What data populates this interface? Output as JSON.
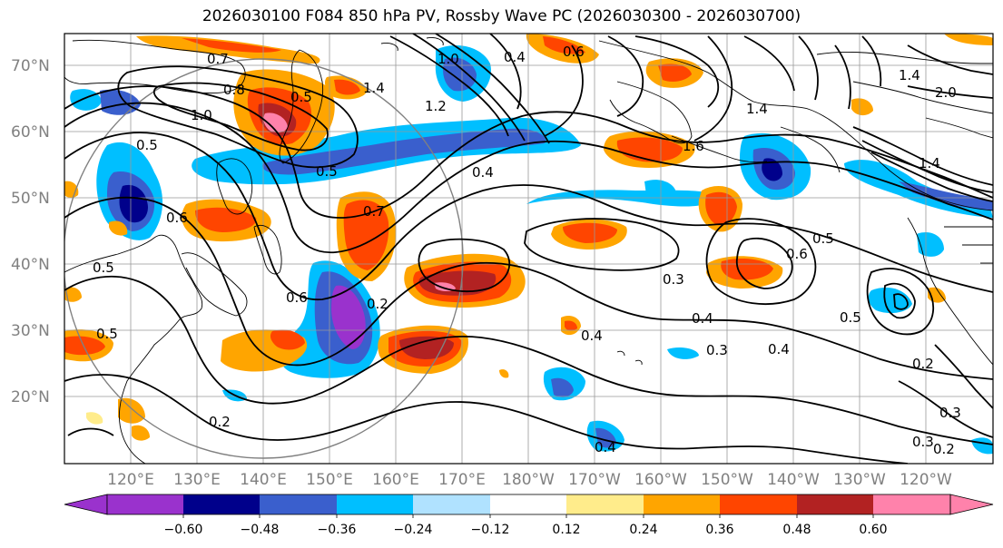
{
  "title": "2026030100 F084 850 hPa PV, Rossby Wave PC (2026030300 - 2026030700)",
  "colors": {
    "neg_060": "#9a32cd",
    "neg_048": "#00008b",
    "neg_036": "#3a5fcd",
    "neg_024": "#00bfff",
    "neg_012": "#b0e2ff",
    "neutral": "#ffffff",
    "pos_012": "#ffec8b",
    "pos_024": "#ffa500",
    "pos_036": "#ff4500",
    "pos_048": "#b22222",
    "pos_060": "#ff82ab",
    "grid": "#999999",
    "contour": "#000000",
    "coast": "#000000",
    "circle": "#808080"
  },
  "latitude_labels": [
    "70°N",
    "60°N",
    "50°N",
    "40°N",
    "30°N",
    "20°N"
  ],
  "longitude_labels": [
    "120°E",
    "130°E",
    "140°E",
    "150°E",
    "160°E",
    "170°E",
    "180°W",
    "170°W",
    "160°W",
    "150°W",
    "140°W",
    "130°W",
    "120°W"
  ],
  "colorbar": {
    "ticks": [
      "−0.60",
      "−0.48",
      "−0.36",
      "−0.24",
      "−0.12",
      "0.12",
      "0.24",
      "0.36",
      "0.48",
      "0.60"
    ],
    "levels": [
      -0.6,
      -0.48,
      -0.36,
      -0.24,
      -0.12,
      0.12,
      0.24,
      0.36,
      0.48,
      0.6
    ]
  },
  "contour_labels": [
    {
      "text": "0.7"
    },
    {
      "text": "0.8"
    },
    {
      "text": "1.0"
    },
    {
      "text": "0.5"
    },
    {
      "text": "0.5"
    },
    {
      "text": "1.4"
    },
    {
      "text": "1.2"
    },
    {
      "text": "1.0"
    },
    {
      "text": "0.4"
    },
    {
      "text": "0.6"
    },
    {
      "text": "0.4"
    },
    {
      "text": "0.5"
    },
    {
      "text": "0.7"
    },
    {
      "text": "0.6"
    },
    {
      "text": "0.2"
    },
    {
      "text": "0.6"
    },
    {
      "text": "0.5"
    },
    {
      "text": "0.5"
    },
    {
      "text": "0.2"
    },
    {
      "text": "0.3"
    },
    {
      "text": "0.4"
    },
    {
      "text": "0.4"
    },
    {
      "text": "0.3"
    },
    {
      "text": "0.4"
    },
    {
      "text": "0.6"
    },
    {
      "text": "0.5"
    },
    {
      "text": "1.4"
    },
    {
      "text": "1.6"
    },
    {
      "text": "1.4"
    },
    {
      "text": "2.0"
    },
    {
      "text": "1.4"
    },
    {
      "text": "0.5"
    },
    {
      "text": "0.2"
    },
    {
      "text": "0.3"
    },
    {
      "text": "0.3"
    },
    {
      "text": "0.2"
    },
    {
      "text": "0.4"
    }
  ]
}
